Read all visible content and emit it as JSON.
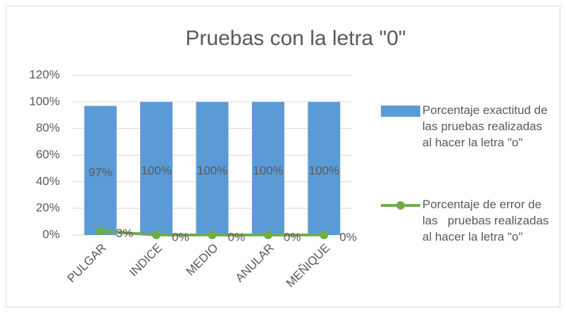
{
  "chart_data": {
    "type": "bar+line",
    "title": "Pruebas con la letra \"0\"",
    "categories": [
      "PULGAR",
      "INDICE",
      "MEDIO",
      "ANULAR",
      "MEÑIQUE"
    ],
    "series": [
      {
        "name": "Porcentaje exactitud de las pruebas realizadas al hacer la letra \"o\"",
        "type": "bar",
        "color": "#5b9bd5",
        "values": [
          97,
          100,
          100,
          100,
          100
        ],
        "value_labels": [
          "97%",
          "100%",
          "100%",
          "100%",
          "100%"
        ]
      },
      {
        "name": "Porcentaje de error de las   pruebas realizadas al hacer la letra \"o\"",
        "type": "line",
        "color": "#70ad47",
        "values": [
          3,
          0,
          0,
          0,
          0
        ],
        "value_labels": [
          "3%",
          "0%",
          "0%",
          "0%",
          "0%"
        ]
      }
    ],
    "ylim": [
      0,
      120
    ],
    "yticks": [
      {
        "value": 0,
        "label": "0%"
      },
      {
        "value": 20,
        "label": "20%"
      },
      {
        "value": 40,
        "label": "40%"
      },
      {
        "value": 60,
        "label": "60%"
      },
      {
        "value": 80,
        "label": "80%"
      },
      {
        "value": 100,
        "label": "100%"
      },
      {
        "value": 120,
        "label": "120%"
      }
    ],
    "grid": true,
    "legend": "right"
  }
}
